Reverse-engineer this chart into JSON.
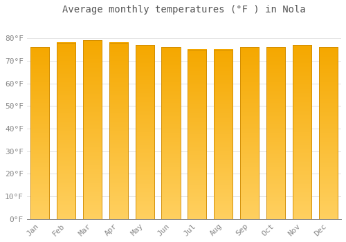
{
  "title": "Average monthly temperatures (°F ) in Nola",
  "months": [
    "Jan",
    "Feb",
    "Mar",
    "Apr",
    "May",
    "Jun",
    "Jul",
    "Aug",
    "Sep",
    "Oct",
    "Nov",
    "Dec"
  ],
  "values": [
    76,
    78,
    79,
    78,
    77,
    76,
    75,
    75,
    76,
    76,
    77,
    76
  ],
  "bar_color_dark": "#F5A800",
  "bar_color_light": "#FFD060",
  "ylim": [
    0,
    88
  ],
  "yticks": [
    0,
    10,
    20,
    30,
    40,
    50,
    60,
    70,
    80
  ],
  "ytick_labels": [
    "0°F",
    "10°F",
    "20°F",
    "30°F",
    "40°F",
    "50°F",
    "60°F",
    "70°F",
    "80°F"
  ],
  "background_color": "#ffffff",
  "grid_color": "#e0e0e0",
  "title_fontsize": 10,
  "tick_fontsize": 8,
  "font_color": "#888888",
  "bar_edge_color": "#CC8800",
  "bar_width": 0.72
}
